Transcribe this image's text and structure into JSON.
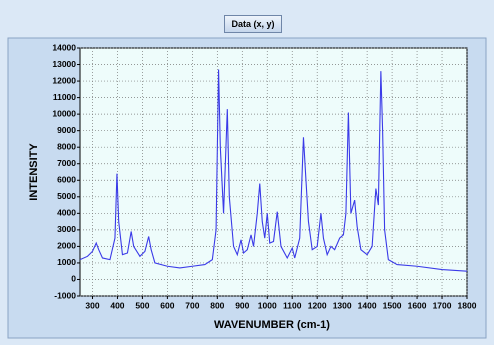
{
  "title_button": "Data (x, y)",
  "chart_data": {
    "type": "line",
    "xlabel": "WAVENUMBER (cm-1)",
    "ylabel": "INTENSITY",
    "x": [
      250,
      280,
      300,
      315,
      325,
      340,
      370,
      390,
      398,
      405,
      420,
      440,
      455,
      465,
      490,
      510,
      525,
      535,
      550,
      600,
      650,
      700,
      750,
      780,
      795,
      805,
      812,
      825,
      840,
      848,
      865,
      880,
      895,
      905,
      920,
      935,
      945,
      960,
      970,
      980,
      990,
      1000,
      1010,
      1025,
      1040,
      1055,
      1080,
      1100,
      1110,
      1130,
      1145,
      1155,
      1165,
      1180,
      1200,
      1215,
      1225,
      1240,
      1255,
      1270,
      1290,
      1305,
      1315,
      1325,
      1335,
      1350,
      1360,
      1375,
      1400,
      1420,
      1435,
      1445,
      1455,
      1462,
      1470,
      1485,
      1520,
      1600,
      1700,
      1800
    ],
    "values": [
      1200,
      1400,
      1700,
      2200,
      1800,
      1300,
      1200,
      2500,
      6400,
      3500,
      1500,
      1600,
      2900,
      2000,
      1400,
      1700,
      2600,
      1800,
      1000,
      800,
      700,
      800,
      900,
      1200,
      3000,
      12700,
      8000,
      4000,
      10300,
      5000,
      2000,
      1500,
      2400,
      1600,
      1800,
      2700,
      2000,
      4000,
      5800,
      3500,
      2500,
      4000,
      2200,
      2300,
      4100,
      2000,
      1300,
      1900,
      1300,
      2500,
      8600,
      6000,
      3500,
      1800,
      2000,
      4000,
      2500,
      1500,
      2000,
      1800,
      2500,
      2700,
      4000,
      10100,
      4000,
      4800,
      3200,
      1800,
      1500,
      2000,
      5500,
      4500,
      12600,
      9000,
      3000,
      1200,
      900,
      800,
      600,
      500
    ],
    "color": "#3a3ae8",
    "xlim": [
      250,
      1800
    ],
    "ylim": [
      -1000,
      14000
    ],
    "xticks": [
      300,
      400,
      500,
      600,
      700,
      800,
      900,
      1000,
      1100,
      1200,
      1300,
      1400,
      1500,
      1600,
      1700,
      1800
    ],
    "yticks": [
      -1000,
      0,
      1000,
      2000,
      3000,
      4000,
      5000,
      6000,
      7000,
      8000,
      9000,
      10000,
      11000,
      12000,
      13000,
      14000
    ],
    "grid": true
  }
}
